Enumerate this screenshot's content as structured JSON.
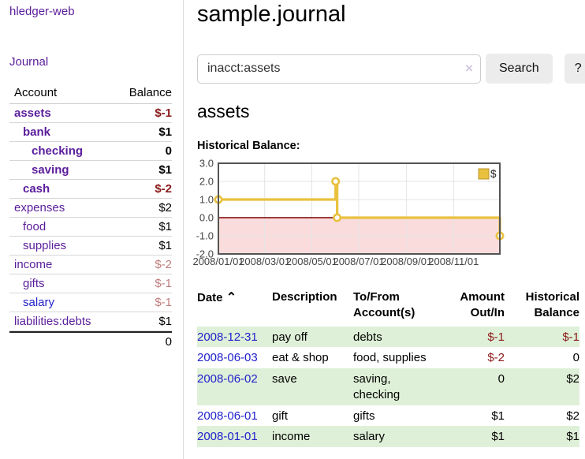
{
  "app": {
    "brand": "hledger-web"
  },
  "sidebar": {
    "journal_link": "Journal",
    "accounts": {
      "headers": {
        "account": "Account",
        "balance": "Balance"
      },
      "rows": [
        {
          "account": "assets",
          "balance": "$-1"
        },
        {
          "account": "bank",
          "balance": "$1"
        },
        {
          "account": "checking",
          "balance": "0"
        },
        {
          "account": "saving",
          "balance": "$1"
        },
        {
          "account": "cash",
          "balance": "$-2"
        },
        {
          "account": "expenses",
          "balance": "$2"
        },
        {
          "account": "food",
          "balance": "$1"
        },
        {
          "account": "supplies",
          "balance": "$1"
        },
        {
          "account": "income",
          "balance": "$-2"
        },
        {
          "account": "gifts",
          "balance": "$-1"
        },
        {
          "account": "salary",
          "balance": "$-1"
        },
        {
          "account": "liabilities:debts",
          "balance": "$1"
        }
      ],
      "total": "0"
    }
  },
  "main": {
    "title": "sample.journal",
    "search": {
      "value": "inacct:assets",
      "clear_icon": "×",
      "search_button": "Search",
      "help_button": "?"
    },
    "account_heading": "assets",
    "chart_label": "Historical Balance:"
  },
  "chart_data": {
    "type": "line",
    "step": true,
    "title": "Historical Balance",
    "x_start": "2008-01-01",
    "x_end": "2008-12-31",
    "points": [
      {
        "date": "2008-01-01",
        "value": 1.0
      },
      {
        "date": "2008-06-01",
        "value": 2.0
      },
      {
        "date": "2008-06-03",
        "value": 0.0
      },
      {
        "date": "2008-12-31",
        "value": -1.0
      }
    ],
    "y_ticks": [
      3.0,
      2.0,
      1.0,
      0.0,
      -1.0,
      -2.0
    ],
    "ylim": [
      -2.0,
      3.0
    ],
    "x_ticks": [
      "2008/01/01",
      "2008/03/01",
      "2008/05/01",
      "2008/07/01",
      "2008/09/01",
      "2008/11/01"
    ],
    "legend": {
      "label": "$",
      "position": "top-right"
    },
    "grid": true,
    "colors": {
      "line": "#e9c13f",
      "marker_fill": "#ffffff",
      "negative_region": "#fbdcdc",
      "zero_line": "#7a0000",
      "grid": "#e4e4e4",
      "border": "#545454"
    }
  },
  "register": {
    "headers": {
      "date": "Date",
      "sort_icon": "⌃",
      "description": "Description",
      "account": "To/From Account(s)",
      "amount": "Amount Out/In",
      "balance": "Historical Balance"
    },
    "rows": [
      {
        "date": "2008-12-31",
        "description": "pay off",
        "account": "debts",
        "amount": "$-1",
        "balance": "$-1"
      },
      {
        "date": "2008-06-03",
        "description": "eat & shop",
        "account": "food, supplies",
        "amount": "$-2",
        "balance": "0"
      },
      {
        "date": "2008-06-02",
        "description": "save",
        "account": "saving, checking",
        "amount": "0",
        "balance": "$2"
      },
      {
        "date": "2008-06-01",
        "description": "gift",
        "account": "gifts",
        "amount": "$1",
        "balance": "$2"
      },
      {
        "date": "2008-01-01",
        "description": "income",
        "account": "salary",
        "amount": "$1",
        "balance": "$1"
      }
    ]
  }
}
